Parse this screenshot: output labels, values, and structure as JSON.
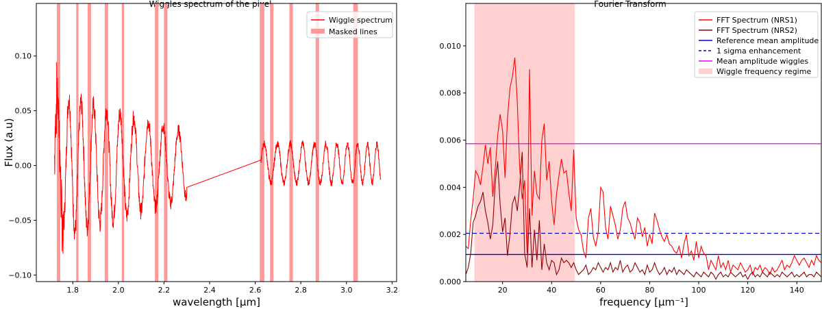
{
  "chart_data": [
    {
      "type": "line",
      "title": "Wiggles spectrum of the pixel",
      "xlabel": "wavelength [μm]",
      "ylabel": "Flux (a.u)",
      "xlim": [
        1.64,
        3.22
      ],
      "ylim": [
        -0.106,
        0.148
      ],
      "xticks": [
        1.8,
        2.0,
        2.2,
        2.4,
        2.6,
        2.8,
        3.0,
        3.2
      ],
      "xtick_labels": [
        "1.8",
        "2.0",
        "2.2",
        "2.4",
        "2.6",
        "2.8",
        "3.0",
        "3.2"
      ],
      "yticks": [
        -0.1,
        -0.05,
        0.0,
        0.05,
        0.1
      ],
      "ytick_labels": [
        "−0.10",
        "−0.05",
        "0.00",
        "0.05",
        "0.10"
      ],
      "grid": false,
      "legend_position": "top-right",
      "legend": [
        {
          "label": "Wiggle spectrum",
          "color": "#ff0000",
          "kind": "line"
        },
        {
          "label": "Masked lines",
          "color": "#ff9999",
          "kind": "patch"
        }
      ],
      "masked_lines": [
        [
          1.73,
          1.745
        ],
        [
          1.815,
          1.825
        ],
        [
          1.865,
          1.88
        ],
        [
          1.94,
          1.955
        ],
        [
          2.015,
          2.025
        ],
        [
          2.16,
          2.175
        ],
        [
          2.2,
          2.215
        ],
        [
          2.62,
          2.64
        ],
        [
          2.665,
          2.68
        ],
        [
          2.75,
          2.765
        ],
        [
          2.865,
          2.88
        ],
        [
          3.03,
          3.05
        ]
      ],
      "series": [
        {
          "name": "Wiggle spectrum",
          "color": "#ff0000",
          "segments": [
            {
              "x_start": 1.72,
              "x_end": 2.3,
              "wave": {
                "amp_start": 0.065,
                "amp_end": 0.03,
                "period_start": 0.05,
                "period_end": 0.07,
                "offset": 0.0
              }
            },
            {
              "connector": [
                [
                  2.3,
                  -0.02
                ],
                [
                  2.625,
                  0.005
                ]
              ]
            },
            {
              "x_start": 2.625,
              "x_end": 3.15,
              "wave": {
                "amp_start": 0.018,
                "amp_end": 0.018,
                "period_start": 0.06,
                "period_end": 0.04,
                "offset": 0.002
              }
            }
          ]
        }
      ]
    },
    {
      "type": "line",
      "title": "Fourier Transform",
      "xlabel": "frequency [μm⁻¹]",
      "ylabel": "",
      "xlim": [
        5,
        150
      ],
      "ylim": [
        0,
        0.0118
      ],
      "xticks": [
        20,
        40,
        60,
        80,
        100,
        120,
        140
      ],
      "xtick_labels": [
        "20",
        "40",
        "60",
        "80",
        "100",
        "120",
        "140"
      ],
      "yticks": [
        0.0,
        0.002,
        0.004,
        0.006,
        0.008,
        0.01
      ],
      "ytick_labels": [
        "0.000",
        "0.002",
        "0.004",
        "0.006",
        "0.008",
        "0.010"
      ],
      "grid": false,
      "legend_position": "top-right",
      "shaded_region": {
        "name": "Wiggle frequency regime",
        "x_start": 8.5,
        "x_end": 49.5,
        "color": "#ffd1d1"
      },
      "series": [
        {
          "name": "FFT Spectrum (NRS1)",
          "color": "#ff0000",
          "kind": "line",
          "x": [
            5,
            6,
            7,
            8,
            9,
            10,
            11,
            12,
            13,
            14,
            15,
            16,
            17,
            18,
            19,
            20,
            21,
            22,
            23,
            24,
            25,
            26,
            27,
            28,
            29,
            30,
            31,
            32,
            33,
            34,
            35,
            36,
            37,
            38,
            39,
            40,
            41,
            42,
            43,
            44,
            45,
            46,
            47,
            48,
            49,
            50,
            51,
            52,
            53,
            54,
            55,
            56,
            57,
            58,
            59,
            60,
            61,
            62,
            63,
            64,
            65,
            66,
            67,
            68,
            69,
            70,
            71,
            72,
            73,
            74,
            75,
            76,
            77,
            78,
            79,
            80,
            81,
            82,
            83,
            84,
            85,
            86,
            87,
            88,
            89,
            90,
            91,
            92,
            93,
            94,
            95,
            96,
            97,
            98,
            99,
            100,
            101,
            102,
            103,
            104,
            105,
            106,
            107,
            108,
            109,
            110,
            111,
            112,
            113,
            114,
            115,
            116,
            117,
            118,
            119,
            120,
            121,
            122,
            123,
            124,
            125,
            126,
            127,
            128,
            129,
            130,
            131,
            132,
            133,
            134,
            135,
            136,
            137,
            138,
            139,
            140,
            141,
            142,
            143,
            144,
            145,
            146,
            147,
            148,
            149,
            150
          ],
          "y": [
            0.0015,
            0.0014,
            0.0026,
            0.0035,
            0.0047,
            0.0045,
            0.0041,
            0.0049,
            0.0058,
            0.005,
            0.0057,
            0.0036,
            0.0048,
            0.0062,
            0.0071,
            0.0064,
            0.0044,
            0.0069,
            0.0082,
            0.0087,
            0.0095,
            0.0076,
            0.0048,
            0.0035,
            0.0043,
            0.0012,
            0.009,
            0.0028,
            0.0047,
            0.0037,
            0.0035,
            0.006,
            0.0067,
            0.0043,
            0.0051,
            0.0034,
            0.0024,
            0.0037,
            0.0045,
            0.0052,
            0.0046,
            0.0047,
            0.0038,
            0.003,
            0.0056,
            0.0027,
            0.0022,
            0.002,
            0.0013,
            0.001,
            0.0027,
            0.0031,
            0.0019,
            0.0015,
            0.0021,
            0.004,
            0.0038,
            0.0023,
            0.0018,
            0.0032,
            0.0028,
            0.0024,
            0.0018,
            0.0022,
            0.0031,
            0.0034,
            0.0027,
            0.0025,
            0.0021,
            0.0018,
            0.0027,
            0.0025,
            0.0019,
            0.0023,
            0.0015,
            0.002,
            0.0016,
            0.0029,
            0.0026,
            0.0022,
            0.0019,
            0.0017,
            0.002,
            0.0016,
            0.0015,
            0.0013,
            0.0012,
            0.0015,
            0.001,
            0.0016,
            0.002,
            0.0011,
            0.0013,
            0.0009,
            0.0017,
            0.001,
            0.0015,
            0.0012,
            0.0011,
            0.0005,
            0.0009,
            0.0007,
            0.0005,
            0.0011,
            0.0006,
            0.0008,
            0.0005,
            0.0009,
            0.0004,
            0.0007,
            0.0006,
            0.0005,
            0.0008,
            0.0006,
            0.0004,
            0.0005,
            0.0007,
            0.0003,
            0.0006,
            0.0005,
            0.0007,
            0.0004,
            0.0006,
            0.0005,
            0.0003,
            0.0006,
            0.0004,
            0.0005,
            0.0007,
            0.0009,
            0.0005,
            0.0007,
            0.0006,
            0.0008,
            0.0011,
            0.0009,
            0.0007,
            0.0009,
            0.001,
            0.0008,
            0.0006,
            0.0009,
            0.0007,
            0.0011,
            0.0009,
            0.0008
          ]
        },
        {
          "name": "FFT Spectrum (NRS2)",
          "color": "#8b0000",
          "kind": "line",
          "x": [
            5,
            6,
            7,
            8,
            9,
            10,
            11,
            12,
            13,
            14,
            15,
            16,
            17,
            18,
            19,
            20,
            21,
            22,
            23,
            24,
            25,
            26,
            27,
            28,
            29,
            30,
            31,
            32,
            33,
            34,
            35,
            36,
            37,
            38,
            39,
            40,
            41,
            42,
            43,
            44,
            45,
            46,
            47,
            48,
            49,
            50,
            51,
            52,
            53,
            54,
            55,
            56,
            57,
            58,
            59,
            60,
            61,
            62,
            63,
            64,
            65,
            66,
            67,
            68,
            69,
            70,
            71,
            72,
            73,
            74,
            75,
            76,
            77,
            78,
            79,
            80,
            81,
            82,
            83,
            84,
            85,
            86,
            87,
            88,
            89,
            90,
            91,
            92,
            93,
            94,
            95,
            96,
            97,
            98,
            99,
            100,
            101,
            102,
            103,
            104,
            105,
            106,
            107,
            108,
            109,
            110,
            111,
            112,
            113,
            114,
            115,
            116,
            117,
            118,
            119,
            120,
            121,
            122,
            123,
            124,
            125,
            126,
            127,
            128,
            129,
            130,
            131,
            132,
            133,
            134,
            135,
            136,
            137,
            138,
            139,
            140,
            141,
            142,
            143,
            144,
            145,
            146,
            147,
            148,
            149,
            150
          ],
          "y": [
            0.0003,
            0.0006,
            0.0012,
            0.0025,
            0.0028,
            0.0032,
            0.0034,
            0.0038,
            0.003,
            0.0025,
            0.0018,
            0.0024,
            0.0042,
            0.0051,
            0.0033,
            0.0021,
            0.0027,
            0.0011,
            0.002,
            0.0033,
            0.0036,
            0.003,
            0.0041,
            0.0055,
            0.0012,
            0.0006,
            0.0031,
            0.0006,
            0.0022,
            0.0009,
            0.0026,
            0.0005,
            0.0016,
            0.0008,
            0.0005,
            0.0009,
            0.0008,
            0.0003,
            0.0005,
            0.001,
            0.0008,
            0.0009,
            0.0008,
            0.0006,
            0.0008,
            0.0005,
            0.0003,
            0.0004,
            0.0005,
            0.0007,
            0.0003,
            0.0004,
            0.0006,
            0.0005,
            0.0008,
            0.0006,
            0.0004,
            0.0006,
            0.0005,
            0.0008,
            0.0004,
            0.0006,
            0.0005,
            0.0009,
            0.0004,
            0.0006,
            0.0007,
            0.0004,
            0.0005,
            0.0008,
            0.0006,
            0.0004,
            0.0005,
            0.0003,
            0.0007,
            0.0004,
            0.0005,
            0.0008,
            0.0005,
            0.0003,
            0.0004,
            0.0006,
            0.0003,
            0.0005,
            0.0004,
            0.0006,
            0.0003,
            0.0005,
            0.0004,
            0.0003,
            0.0005,
            0.0004,
            0.0003,
            0.0002,
            0.0004,
            0.0003,
            0.0002,
            0.0004,
            0.0003,
            0.0002,
            0.0004,
            0.0003,
            0.0001,
            0.0003,
            0.0004,
            0.0002,
            0.0003,
            0.0002,
            0.0004,
            0.0003,
            0.0002,
            0.0003,
            0.0004,
            0.0002,
            0.0003,
            0.0001,
            0.0003,
            0.0004,
            0.0002,
            0.0003,
            0.0002,
            0.0004,
            0.0003,
            0.0002,
            0.0004,
            0.0003,
            0.0002,
            0.0003,
            0.0002,
            0.0004,
            0.0003,
            0.0002,
            0.0003,
            0.0004,
            0.0002,
            0.0003,
            0.0002,
            0.0003,
            0.0004,
            0.0002,
            0.0003,
            0.0003,
            0.0002,
            0.0004,
            0.0003,
            0.0002
          ]
        },
        {
          "name": "Reference mean amplitude",
          "color": "#0000cc",
          "kind": "hline",
          "y": 0.00115,
          "dash": "solid"
        },
        {
          "name": "1 sigma enhancement",
          "color": "#0000cc",
          "kind": "hline",
          "y": 0.00205,
          "dash": "dashed"
        },
        {
          "name": "Mean amplitude wiggles",
          "color": "#ee00ee",
          "kind": "hline",
          "y": 0.00585,
          "dash": "solid"
        }
      ],
      "legend": [
        {
          "label": "FFT Spectrum (NRS1)",
          "color": "#ff0000",
          "kind": "line"
        },
        {
          "label": "FFT Spectrum (NRS2)",
          "color": "#8b0000",
          "kind": "line"
        },
        {
          "label": "Reference mean amplitude",
          "color": "#0000cc",
          "kind": "line"
        },
        {
          "label": "1 sigma enhancement",
          "color": "#0000cc",
          "kind": "dashed"
        },
        {
          "label": "Mean amplitude wiggles",
          "color": "#ee00ee",
          "kind": "line"
        },
        {
          "label": "Wiggle frequency regime",
          "color": "#ffd1d1",
          "kind": "patch"
        }
      ]
    }
  ]
}
